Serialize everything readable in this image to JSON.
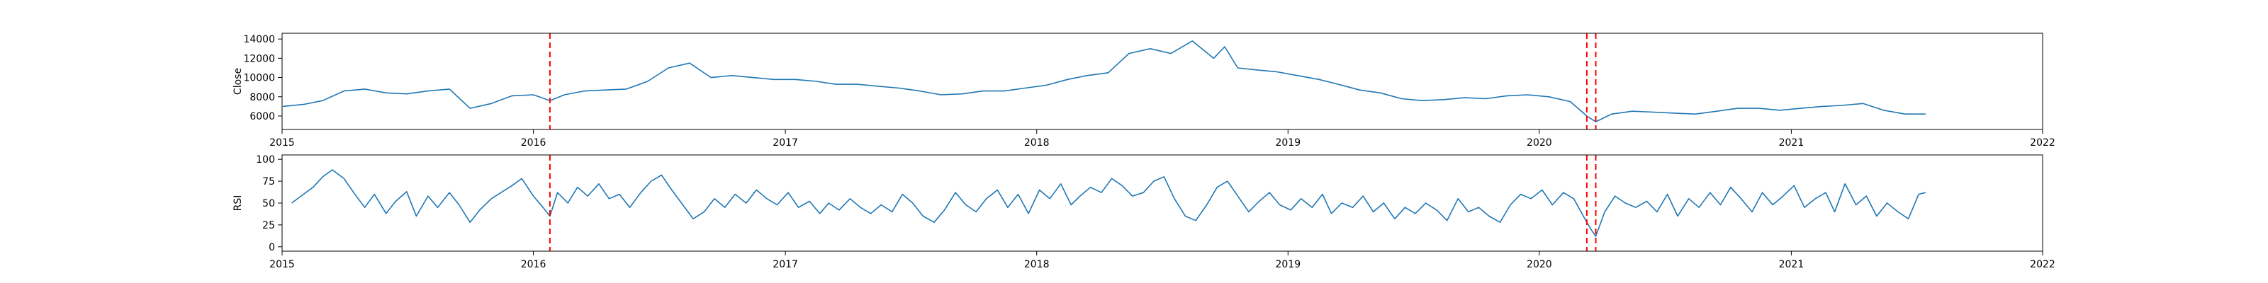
{
  "chart_data": [
    {
      "type": "line",
      "ylabel": "Close",
      "xlim": [
        "2015-01-01",
        "2022-01-01"
      ],
      "ylim": [
        4600,
        14600
      ],
      "yticks": [
        6000,
        8000,
        10000,
        12000,
        14000
      ],
      "xticks": [
        "2015",
        "2016",
        "2017",
        "2018",
        "2019",
        "2020",
        "2021",
        "2022"
      ],
      "grid": false,
      "series_color": "#1f77b4",
      "vlines": [
        "2016-01-25",
        "2020-03-10",
        "2020-03-23"
      ],
      "vline_color": "#ff0000",
      "series": [
        {
          "x": [
            "2015-01-02",
            "2015-02-01",
            "2015-03-01",
            "2015-04-01",
            "2015-05-01",
            "2015-06-01",
            "2015-07-01",
            "2015-08-01",
            "2015-09-01",
            "2015-10-01",
            "2015-11-01",
            "2015-12-01",
            "2016-01-01",
            "2016-01-25",
            "2016-02-15",
            "2016-03-15",
            "2016-04-15",
            "2016-05-15",
            "2016-06-15",
            "2016-07-15",
            "2016-08-15",
            "2016-09-15",
            "2016-10-15",
            "2016-11-15",
            "2016-12-15",
            "2017-01-15",
            "2017-02-15",
            "2017-03-15",
            "2017-04-15",
            "2017-05-15",
            "2017-06-15",
            "2017-07-15",
            "2017-08-15",
            "2017-09-15",
            "2017-10-15",
            "2017-11-15",
            "2017-12-15",
            "2018-01-15",
            "2018-02-15",
            "2018-03-15",
            "2018-04-15",
            "2018-05-15",
            "2018-06-15",
            "2018-07-15",
            "2018-08-15",
            "2018-09-15",
            "2018-10-01",
            "2018-10-20",
            "2018-11-15",
            "2018-12-15",
            "2019-01-15",
            "2019-02-15",
            "2019-03-15",
            "2019-04-15",
            "2019-05-15",
            "2019-06-15",
            "2019-07-15",
            "2019-08-15",
            "2019-09-15",
            "2019-10-15",
            "2019-11-15",
            "2019-12-15",
            "2020-01-15",
            "2020-02-15",
            "2020-03-10",
            "2020-03-23",
            "2020-04-15",
            "2020-05-15",
            "2020-06-15",
            "2020-07-15",
            "2020-08-15",
            "2020-09-15",
            "2020-10-15",
            "2020-11-15",
            "2020-12-15",
            "2021-01-15",
            "2021-02-15",
            "2021-03-15",
            "2021-04-15",
            "2021-05-15",
            "2021-06-15",
            "2021-07-15"
          ],
          "y": [
            7000,
            7200,
            7600,
            8600,
            8800,
            8400,
            8300,
            8600,
            8800,
            6800,
            7300,
            8100,
            8200,
            7600,
            8200,
            8600,
            8700,
            8800,
            9600,
            11000,
            11500,
            10000,
            10200,
            10000,
            9800,
            9800,
            9600,
            9300,
            9300,
            9100,
            8900,
            8600,
            8200,
            8300,
            8600,
            8600,
            8900,
            9200,
            9800,
            10200,
            10500,
            12500,
            13000,
            12500,
            13800,
            12000,
            13200,
            11000,
            10800,
            10600,
            10200,
            9800,
            9300,
            8700,
            8400,
            7800,
            7600,
            7700,
            7900,
            7800,
            8100,
            8200,
            8000,
            7500,
            6000,
            5400,
            6200,
            6500,
            6400,
            6300,
            6200,
            6500,
            6800,
            6800,
            6600,
            6800,
            7000,
            7100,
            7300,
            6600,
            6200,
            6200
          ]
        }
      ]
    },
    {
      "type": "line",
      "ylabel": "RSI",
      "xlim": [
        "2015-01-01",
        "2022-01-01"
      ],
      "ylim": [
        -5,
        105
      ],
      "yticks": [
        0,
        25,
        50,
        75,
        100
      ],
      "xticks": [
        "2015",
        "2016",
        "2017",
        "2018",
        "2019",
        "2020",
        "2021",
        "2022"
      ],
      "grid": false,
      "series_color": "#1f77b4",
      "vlines": [
        "2016-01-25",
        "2020-03-10",
        "2020-03-23"
      ],
      "vline_color": "#ff0000",
      "series": [
        {
          "x": [
            "2015-01-15",
            "2015-02-01",
            "2015-02-15",
            "2015-03-01",
            "2015-03-15",
            "2015-04-01",
            "2015-04-15",
            "2015-05-01",
            "2015-05-15",
            "2015-06-01",
            "2015-06-15",
            "2015-07-01",
            "2015-07-15",
            "2015-08-01",
            "2015-08-15",
            "2015-09-01",
            "2015-09-15",
            "2015-10-01",
            "2015-10-15",
            "2015-11-01",
            "2015-11-15",
            "2015-12-01",
            "2015-12-15",
            "2016-01-01",
            "2016-01-15",
            "2016-01-25",
            "2016-02-05",
            "2016-02-20",
            "2016-03-05",
            "2016-03-20",
            "2016-04-05",
            "2016-04-20",
            "2016-05-05",
            "2016-05-20",
            "2016-06-05",
            "2016-06-20",
            "2016-07-05",
            "2016-07-20",
            "2016-08-05",
            "2016-08-20",
            "2016-09-05",
            "2016-09-20",
            "2016-10-05",
            "2016-10-20",
            "2016-11-05",
            "2016-11-20",
            "2016-12-05",
            "2016-12-20",
            "2017-01-05",
            "2017-01-20",
            "2017-02-05",
            "2017-02-20",
            "2017-03-05",
            "2017-03-20",
            "2017-04-05",
            "2017-04-20",
            "2017-05-05",
            "2017-05-20",
            "2017-06-05",
            "2017-06-20",
            "2017-07-05",
            "2017-07-20",
            "2017-08-05",
            "2017-08-20",
            "2017-09-05",
            "2017-09-20",
            "2017-10-05",
            "2017-10-20",
            "2017-11-05",
            "2017-11-20",
            "2017-12-05",
            "2017-12-20",
            "2018-01-05",
            "2018-01-20",
            "2018-02-05",
            "2018-02-20",
            "2018-03-05",
            "2018-03-20",
            "2018-04-05",
            "2018-04-20",
            "2018-05-05",
            "2018-05-20",
            "2018-06-05",
            "2018-06-20",
            "2018-07-05",
            "2018-07-20",
            "2018-08-05",
            "2018-08-20",
            "2018-09-05",
            "2018-09-20",
            "2018-10-05",
            "2018-10-20",
            "2018-11-05",
            "2018-11-20",
            "2018-12-05",
            "2018-12-20",
            "2019-01-05",
            "2019-01-20",
            "2019-02-05",
            "2019-02-20",
            "2019-03-05",
            "2019-03-20",
            "2019-04-05",
            "2019-04-20",
            "2019-05-05",
            "2019-05-20",
            "2019-06-05",
            "2019-06-20",
            "2019-07-05",
            "2019-07-20",
            "2019-08-05",
            "2019-08-20",
            "2019-09-05",
            "2019-09-20",
            "2019-10-05",
            "2019-10-20",
            "2019-11-05",
            "2019-11-20",
            "2019-12-05",
            "2019-12-20",
            "2020-01-05",
            "2020-01-20",
            "2020-02-05",
            "2020-02-20",
            "2020-03-05",
            "2020-03-16",
            "2020-03-23",
            "2020-04-05",
            "2020-04-20",
            "2020-05-05",
            "2020-05-20",
            "2020-06-05",
            "2020-06-20",
            "2020-07-05",
            "2020-07-20",
            "2020-08-05",
            "2020-08-20",
            "2020-09-05",
            "2020-09-20",
            "2020-10-05",
            "2020-10-20",
            "2020-11-05",
            "2020-11-20",
            "2020-12-05",
            "2020-12-20",
            "2021-01-05",
            "2021-01-20",
            "2021-02-05",
            "2021-02-20",
            "2021-03-05",
            "2021-03-20",
            "2021-04-05",
            "2021-04-20",
            "2021-05-05",
            "2021-05-20",
            "2021-06-05",
            "2021-06-20",
            "2021-07-05",
            "2021-07-15"
          ],
          "y": [
            50,
            60,
            68,
            80,
            88,
            78,
            62,
            45,
            60,
            38,
            52,
            63,
            35,
            58,
            45,
            62,
            48,
            28,
            42,
            55,
            62,
            70,
            78,
            58,
            45,
            35,
            62,
            50,
            68,
            58,
            72,
            55,
            60,
            45,
            62,
            75,
            82,
            65,
            48,
            32,
            40,
            55,
            45,
            60,
            50,
            65,
            55,
            48,
            62,
            45,
            52,
            38,
            50,
            42,
            55,
            45,
            38,
            48,
            40,
            60,
            50,
            35,
            28,
            42,
            62,
            48,
            40,
            55,
            65,
            45,
            60,
            38,
            65,
            55,
            72,
            48,
            58,
            68,
            62,
            78,
            70,
            58,
            62,
            75,
            80,
            55,
            35,
            30,
            48,
            68,
            75,
            58,
            40,
            52,
            62,
            48,
            42,
            55,
            45,
            60,
            38,
            50,
            45,
            58,
            40,
            50,
            32,
            45,
            38,
            50,
            42,
            30,
            55,
            40,
            45,
            35,
            28,
            48,
            60,
            55,
            65,
            48,
            62,
            55,
            35,
            20,
            12,
            40,
            58,
            50,
            45,
            52,
            40,
            60,
            35,
            55,
            45,
            62,
            48,
            68,
            55,
            40,
            62,
            48,
            58,
            70,
            45,
            55,
            62,
            40,
            72,
            48,
            58,
            35,
            50,
            40,
            32,
            60,
            62
          ]
        }
      ]
    }
  ]
}
